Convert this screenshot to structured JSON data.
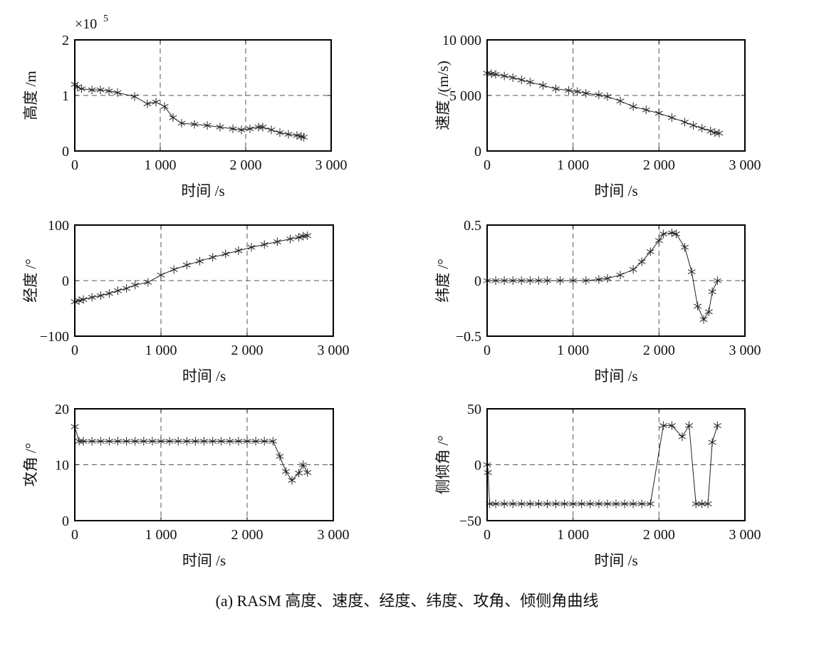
{
  "caption": "(a) RASM 高度、速度、经度、纬度、攻角、倾侧角曲线",
  "chart_data": [
    {
      "type": "line",
      "ylabel": "高度 /m",
      "xlabel": "时间 /s",
      "exponent_label": "×10",
      "exponent_power": "5",
      "xlim": [
        0,
        3000
      ],
      "ylim": [
        0,
        2
      ],
      "xticks": [
        "0",
        "1 000",
        "2 000",
        "3 000"
      ],
      "yticks": [
        "0",
        "1",
        "2"
      ],
      "grid": true,
      "marker": "asterisk",
      "x": [
        0,
        30,
        80,
        200,
        300,
        400,
        500,
        700,
        850,
        950,
        1050,
        1150,
        1250,
        1400,
        1550,
        1700,
        1850,
        1950,
        2050,
        2150,
        2200,
        2300,
        2400,
        2500,
        2600,
        2650,
        2680
      ],
      "y": [
        1.2,
        1.15,
        1.12,
        1.1,
        1.1,
        1.08,
        1.05,
        0.98,
        0.85,
        0.88,
        0.8,
        0.6,
        0.5,
        0.48,
        0.46,
        0.43,
        0.4,
        0.38,
        0.4,
        0.43,
        0.43,
        0.38,
        0.33,
        0.3,
        0.28,
        0.26,
        0.25
      ]
    },
    {
      "type": "line",
      "ylabel": "速度 /(m/s)",
      "xlabel": "时间 /s",
      "xlim": [
        0,
        3000
      ],
      "ylim": [
        0,
        10000
      ],
      "xticks": [
        "0",
        "1 000",
        "2 000",
        "3 000"
      ],
      "yticks": [
        "0",
        "5 000",
        "10 000"
      ],
      "grid": true,
      "marker": "asterisk",
      "x": [
        0,
        50,
        100,
        200,
        300,
        400,
        500,
        650,
        800,
        950,
        1050,
        1150,
        1300,
        1400,
        1550,
        1700,
        1850,
        2000,
        2150,
        2300,
        2400,
        2500,
        2600,
        2650,
        2700
      ],
      "y": [
        7000,
        6950,
        6900,
        6750,
        6600,
        6400,
        6200,
        5900,
        5600,
        5450,
        5350,
        5200,
        5050,
        4900,
        4500,
        4000,
        3700,
        3400,
        3000,
        2600,
        2300,
        2050,
        1800,
        1650,
        1600
      ]
    },
    {
      "type": "line",
      "ylabel": "经度 /°",
      "xlabel": "时间 /s",
      "xlim": [
        0,
        3000
      ],
      "ylim": [
        -100,
        100
      ],
      "xticks": [
        "0",
        "1 000",
        "2 000",
        "3 000"
      ],
      "yticks": [
        "−100",
        "0",
        "100"
      ],
      "grid": true,
      "marker": "asterisk",
      "x": [
        0,
        50,
        100,
        200,
        300,
        400,
        500,
        600,
        700,
        850,
        1000,
        1150,
        1300,
        1450,
        1600,
        1750,
        1900,
        2050,
        2200,
        2350,
        2500,
        2600,
        2650,
        2700
      ],
      "y": [
        -38,
        -36,
        -34,
        -30,
        -27,
        -23,
        -18,
        -14,
        -8,
        -3,
        10,
        20,
        28,
        35,
        42,
        48,
        54,
        60,
        65,
        70,
        75,
        78,
        80,
        81
      ]
    },
    {
      "type": "line",
      "ylabel": "纬度 /°",
      "xlabel": "时间 /s",
      "xlim": [
        0,
        3000
      ],
      "ylim": [
        -0.5,
        0.5
      ],
      "xticks": [
        "0",
        "1 000",
        "2 000",
        "3 000"
      ],
      "yticks": [
        "−0.5",
        "0",
        "0.5"
      ],
      "grid": true,
      "marker": "asterisk",
      "x": [
        0,
        100,
        200,
        300,
        400,
        500,
        600,
        700,
        850,
        1000,
        1150,
        1300,
        1400,
        1550,
        1700,
        1800,
        1900,
        2000,
        2050,
        2150,
        2200,
        2300,
        2380,
        2450,
        2520,
        2580,
        2620,
        2680
      ],
      "y": [
        0,
        0,
        0,
        0,
        0,
        0,
        0,
        0,
        0,
        0,
        0,
        0.01,
        0.02,
        0.05,
        0.1,
        0.17,
        0.26,
        0.36,
        0.42,
        0.43,
        0.42,
        0.3,
        0.08,
        -0.23,
        -0.35,
        -0.28,
        -0.1,
        0
      ]
    },
    {
      "type": "line",
      "ylabel": "攻角 /°",
      "xlabel": "时间 /s",
      "xlim": [
        0,
        3000
      ],
      "ylim": [
        0,
        20
      ],
      "xticks": [
        "0",
        "1 000",
        "2 000",
        "3 000"
      ],
      "yticks": [
        "0",
        "10",
        "20"
      ],
      "grid": true,
      "marker": "asterisk",
      "x": [
        0,
        50,
        100,
        200,
        300,
        400,
        500,
        600,
        700,
        800,
        900,
        1000,
        1100,
        1200,
        1300,
        1400,
        1500,
        1600,
        1700,
        1800,
        1900,
        2000,
        2100,
        2200,
        2300,
        2380,
        2450,
        2520,
        2600,
        2650,
        2700
      ],
      "y": [
        16.8,
        14.2,
        14.2,
        14.2,
        14.2,
        14.2,
        14.2,
        14.2,
        14.2,
        14.2,
        14.2,
        14.2,
        14.2,
        14.2,
        14.2,
        14.2,
        14.2,
        14.2,
        14.2,
        14.2,
        14.2,
        14.2,
        14.2,
        14.2,
        14.2,
        11.5,
        8.8,
        7.2,
        8.5,
        10,
        8.6
      ]
    },
    {
      "type": "line",
      "ylabel": "侧倾角 /°",
      "xlabel": "时间 /s",
      "xlim": [
        0,
        3000
      ],
      "ylim": [
        -50,
        50
      ],
      "xticks": [
        "0",
        "1 000",
        "2 000",
        "3 000"
      ],
      "yticks": [
        "−50",
        "0",
        "50"
      ],
      "grid": true,
      "marker": "asterisk",
      "x": [
        0,
        10,
        30,
        100,
        200,
        300,
        400,
        500,
        600,
        700,
        800,
        900,
        1000,
        1100,
        1200,
        1300,
        1400,
        1500,
        1600,
        1700,
        1800,
        1900,
        2050,
        2150,
        2270,
        2350,
        2430,
        2500,
        2570,
        2620,
        2680
      ],
      "y": [
        0,
        -7,
        -35,
        -35,
        -35,
        -35,
        -35,
        -35,
        -35,
        -35,
        -35,
        -35,
        -35,
        -35,
        -35,
        -35,
        -35,
        -35,
        -35,
        -35,
        -35,
        -35,
        35,
        35,
        25,
        35,
        -35,
        -35,
        -35,
        20,
        35
      ]
    }
  ]
}
